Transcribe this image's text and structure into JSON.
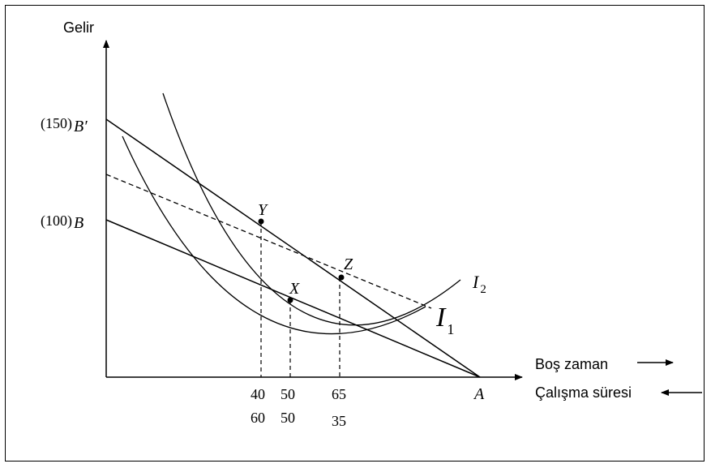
{
  "axes": {
    "y_label": "Gelir",
    "x_label_top": "Boş zaman",
    "x_label_bottom": "Çalışma süresi"
  },
  "y_ticks": {
    "b_prime_value": "(150)",
    "b_prime_letter": "B′",
    "b_value": "(100)",
    "b_letter": "B"
  },
  "x_ticks": [
    {
      "top": "40",
      "bottom": "60"
    },
    {
      "top": "50",
      "bottom": "50"
    },
    {
      "top": "65",
      "bottom": "35"
    }
  ],
  "points": {
    "x": "X",
    "y": "Y",
    "z": "Z",
    "a": "A"
  },
  "curves": {
    "i1_letter": "I",
    "i1_sub": "1",
    "i2_letter": "I",
    "i2_sub": "2"
  },
  "colors": {
    "ink": "#000000",
    "background": "#ffffff"
  }
}
